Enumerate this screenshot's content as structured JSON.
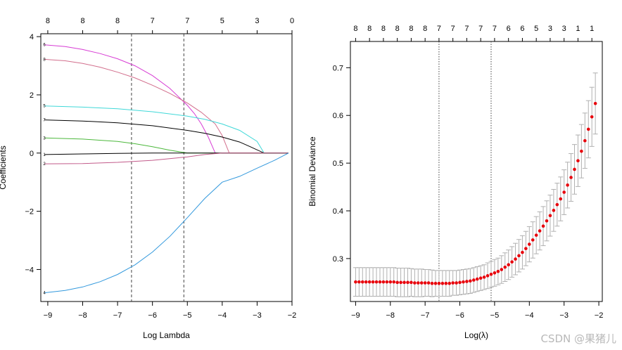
{
  "chart_data": [
    {
      "type": "line",
      "title": "",
      "xlabel": "Log Lambda",
      "ylabel": "Coefficients",
      "xlim": [
        -9.2,
        -2.0
      ],
      "ylim": [
        -5.1,
        4.1
      ],
      "xticks": [
        -9,
        -8,
        -7,
        -6,
        -5,
        -4,
        -3,
        -2
      ],
      "yticks": [
        -4,
        -2,
        0,
        2,
        4
      ],
      "top_axis": {
        "positions": [
          -9,
          -8,
          -7,
          -6,
          -5,
          -4,
          -3,
          -2
        ],
        "labels": [
          "8",
          "8",
          "8",
          "7",
          "7",
          "5",
          "3",
          "0"
        ]
      },
      "vlines": [
        -6.6,
        -5.1
      ],
      "series": [
        {
          "name": "6",
          "color": "#d73cd4",
          "x": [
            -9.1,
            -8.5,
            -8,
            -7.5,
            -7,
            -6.5,
            -6,
            -5.5,
            -5,
            -4.8,
            -4.6,
            -4.4,
            -4.2,
            -2.1
          ],
          "y": [
            3.72,
            3.66,
            3.56,
            3.42,
            3.24,
            3.0,
            2.66,
            2.22,
            1.64,
            1.36,
            1.0,
            0.55,
            0.0,
            0.0
          ]
        },
        {
          "name": "8",
          "color": "#d26e8c",
          "x": [
            -9.1,
            -8.5,
            -8,
            -7.5,
            -7,
            -6.5,
            -6,
            -5.5,
            -5,
            -4.6,
            -4.2,
            -4.0,
            -3.8,
            -2.1
          ],
          "y": [
            3.22,
            3.17,
            3.08,
            2.95,
            2.78,
            2.58,
            2.33,
            2.05,
            1.72,
            1.4,
            1.0,
            0.6,
            0.0,
            0.0
          ]
        },
        {
          "name": "5",
          "color": "#3fd8d8",
          "x": [
            -9.1,
            -8,
            -7,
            -6,
            -5,
            -4.5,
            -4,
            -3.5,
            -3,
            -2.8,
            -2.1
          ],
          "y": [
            1.62,
            1.58,
            1.52,
            1.42,
            1.27,
            1.16,
            1.0,
            0.78,
            0.4,
            0.0,
            0.0
          ]
        },
        {
          "name": "7",
          "color": "#000000",
          "x": [
            -9.1,
            -8,
            -7,
            -6,
            -5,
            -4.5,
            -4,
            -3.5,
            -3.2,
            -2.8,
            -2.1
          ],
          "y": [
            1.14,
            1.1,
            1.04,
            0.94,
            0.78,
            0.68,
            0.55,
            0.38,
            0.22,
            0.0,
            0.0
          ]
        },
        {
          "name": "3",
          "color": "#4cb83c",
          "x": [
            -9.1,
            -8,
            -7,
            -6.5,
            -6,
            -5.5,
            -5,
            -2.1
          ],
          "y": [
            0.52,
            0.48,
            0.4,
            0.32,
            0.22,
            0.1,
            0.0,
            0.0
          ]
        },
        {
          "name": "1",
          "color": "#000000",
          "x": [
            -9.1,
            -8,
            -7,
            -6,
            -5,
            -2.1
          ],
          "y": [
            -0.05,
            -0.03,
            -0.01,
            0.0,
            0.0,
            0.0
          ]
        },
        {
          "name": "2",
          "color": "#c25a8a",
          "x": [
            -9.1,
            -8,
            -7,
            -6,
            -5,
            -4.5,
            -4,
            -2.1
          ],
          "y": [
            -0.37,
            -0.36,
            -0.32,
            -0.25,
            -0.13,
            -0.05,
            0.0,
            0.0
          ]
        },
        {
          "name": "4",
          "color": "#3399dd",
          "x": [
            -9.1,
            -8.5,
            -8,
            -7.5,
            -7,
            -6.5,
            -6,
            -5.5,
            -5,
            -4.5,
            -4,
            -3.5,
            -3,
            -2.5,
            -2.1
          ],
          "y": [
            -4.8,
            -4.72,
            -4.6,
            -4.42,
            -4.17,
            -3.84,
            -3.4,
            -2.86,
            -2.22,
            -1.56,
            -1.0,
            -0.8,
            -0.52,
            -0.25,
            0.0
          ]
        }
      ]
    },
    {
      "type": "scatter",
      "title": "",
      "xlabel": "Log(λ)",
      "ylabel": "Binomial Deviance",
      "xlim": [
        -9.15,
        -1.9
      ],
      "ylim": [
        0.21,
        0.755
      ],
      "xticks": [
        -9,
        -8,
        -7,
        -6,
        -5,
        -4,
        -3,
        -2
      ],
      "yticks": [
        0.3,
        0.4,
        0.5,
        0.6,
        0.7
      ],
      "top_axis": {
        "positions": [
          -9.0,
          -8.6,
          -8.2,
          -7.8,
          -7.4,
          -7.0,
          -6.6,
          -6.2,
          -5.8,
          -5.4,
          -5.0,
          -4.6,
          -4.2,
          -3.8,
          -3.4,
          -3.0,
          -2.6,
          -2.2
        ],
        "labels": [
          "8",
          "8",
          "8",
          "8",
          "8",
          "8",
          "7",
          "7",
          "7",
          "7",
          "7",
          "6",
          "6",
          "5",
          "3",
          "3",
          "1",
          "1"
        ]
      },
      "vlines": [
        -6.6,
        -5.1
      ],
      "point_color": "#e8000b",
      "errorbar_color": "#b0b0b0",
      "points": {
        "x": [
          -9.0,
          -8.9,
          -8.8,
          -8.7,
          -8.6,
          -8.5,
          -8.4,
          -8.3,
          -8.2,
          -8.1,
          -8.0,
          -7.9,
          -7.8,
          -7.7,
          -7.6,
          -7.5,
          -7.4,
          -7.3,
          -7.2,
          -7.1,
          -7.0,
          -6.9,
          -6.8,
          -6.7,
          -6.6,
          -6.5,
          -6.4,
          -6.3,
          -6.2,
          -6.1,
          -6.0,
          -5.9,
          -5.8,
          -5.7,
          -5.6,
          -5.5,
          -5.4,
          -5.3,
          -5.2,
          -5.1,
          -5.0,
          -4.9,
          -4.8,
          -4.7,
          -4.6,
          -4.5,
          -4.4,
          -4.3,
          -4.2,
          -4.1,
          -4.0,
          -3.9,
          -3.8,
          -3.7,
          -3.6,
          -3.5,
          -3.4,
          -3.3,
          -3.2,
          -3.1,
          -3.0,
          -2.9,
          -2.8,
          -2.7,
          -2.6,
          -2.5,
          -2.4,
          -2.3,
          -2.2,
          -2.1
        ],
        "y": [
          0.251,
          0.251,
          0.251,
          0.251,
          0.251,
          0.251,
          0.251,
          0.251,
          0.251,
          0.251,
          0.251,
          0.251,
          0.25,
          0.25,
          0.25,
          0.25,
          0.25,
          0.249,
          0.249,
          0.249,
          0.249,
          0.249,
          0.248,
          0.248,
          0.248,
          0.248,
          0.248,
          0.248,
          0.249,
          0.249,
          0.25,
          0.251,
          0.252,
          0.253,
          0.255,
          0.257,
          0.259,
          0.261,
          0.264,
          0.267,
          0.27,
          0.273,
          0.277,
          0.282,
          0.287,
          0.293,
          0.299,
          0.306,
          0.313,
          0.321,
          0.33,
          0.339,
          0.349,
          0.358,
          0.368,
          0.379,
          0.39,
          0.401,
          0.413,
          0.425,
          0.439,
          0.454,
          0.47,
          0.487,
          0.505,
          0.525,
          0.547,
          0.571,
          0.597,
          0.625
        ],
        "se": [
          0.03,
          0.03,
          0.03,
          0.03,
          0.03,
          0.03,
          0.03,
          0.03,
          0.03,
          0.03,
          0.03,
          0.03,
          0.03,
          0.03,
          0.03,
          0.03,
          0.029,
          0.029,
          0.029,
          0.029,
          0.028,
          0.028,
          0.028,
          0.027,
          0.027,
          0.027,
          0.027,
          0.027,
          0.026,
          0.026,
          0.026,
          0.026,
          0.026,
          0.026,
          0.026,
          0.026,
          0.026,
          0.026,
          0.027,
          0.027,
          0.028,
          0.028,
          0.029,
          0.03,
          0.031,
          0.032,
          0.033,
          0.034,
          0.035,
          0.036,
          0.037,
          0.038,
          0.039,
          0.04,
          0.041,
          0.042,
          0.043,
          0.044,
          0.045,
          0.046,
          0.047,
          0.048,
          0.05,
          0.052,
          0.054,
          0.056,
          0.058,
          0.06,
          0.062,
          0.064
        ]
      }
    }
  ],
  "watermark": "CSDN @果猪儿"
}
